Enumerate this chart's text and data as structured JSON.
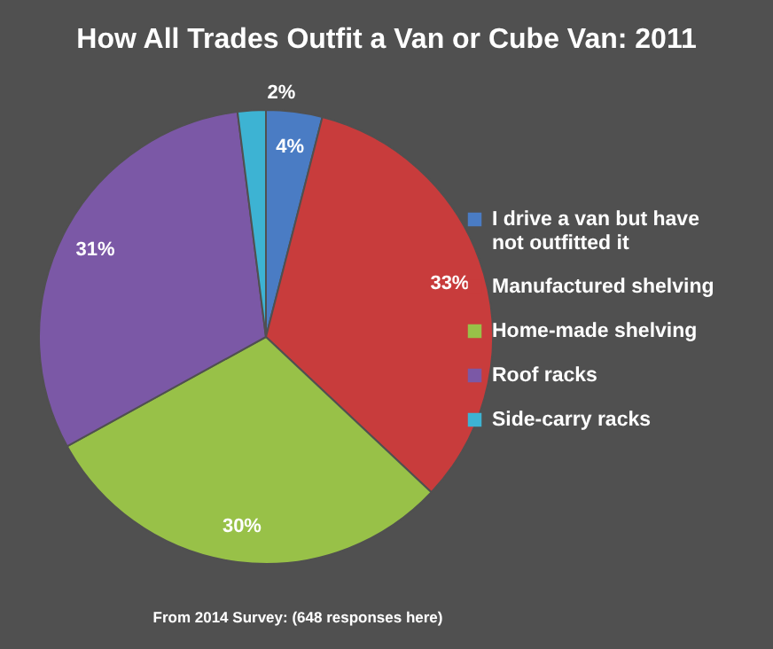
{
  "chart_data": {
    "type": "pie",
    "title": "How All Trades Outfit a Van or Cube Van: 2011",
    "categories": [
      "I drive a van but have not outfitted it",
      "Manufactured shelving",
      "Home-made shelving",
      "Roof racks",
      "Side-carry racks"
    ],
    "values": [
      4,
      33,
      30,
      31,
      2
    ],
    "colors": [
      "#4a7cc4",
      "#c83c3c",
      "#98c148",
      "#7b58a6",
      "#3db3d3"
    ],
    "value_labels": [
      "4%",
      "33%",
      "30%",
      "31%",
      "2%"
    ],
    "legend": "right",
    "annotations": [
      "From 2014 Survey: (648 responses here)"
    ]
  }
}
